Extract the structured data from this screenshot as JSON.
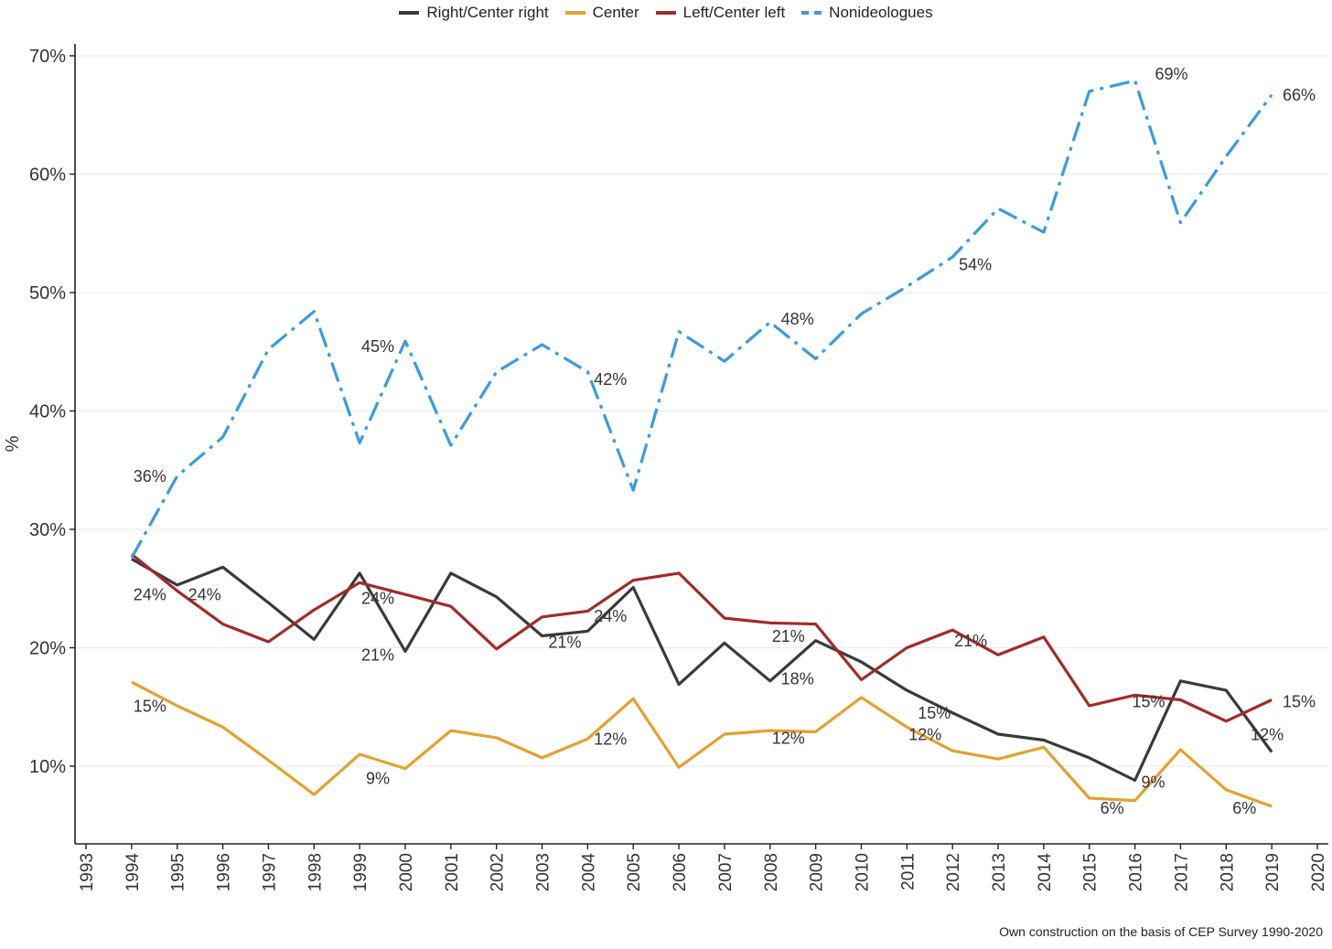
{
  "chart_data": {
    "type": "line",
    "title": "",
    "xlabel": "",
    "ylabel": "%",
    "xlim": [
      1993,
      2020
    ],
    "ylim": [
      3,
      72
    ],
    "x_ticks": [
      "1993",
      "1994",
      "1995",
      "1996",
      "1997",
      "1998",
      "1999",
      "2000",
      "2001",
      "2002",
      "2003",
      "2004",
      "2005",
      "2006",
      "2007",
      "2008",
      "2009",
      "2010",
      "2011",
      "2012",
      "2013",
      "2014",
      "2015",
      "2016",
      "2017",
      "2018",
      "2019",
      "2020"
    ],
    "y_ticks": [
      10,
      20,
      30,
      40,
      50,
      60,
      70
    ],
    "y_tick_labels": [
      "10%",
      "20%",
      "30%",
      "40%",
      "50%",
      "60%",
      "70%"
    ],
    "grid": "horizontal",
    "legend_position": "top",
    "x": [
      1994,
      1995,
      1996,
      1997,
      1998,
      1999,
      2000,
      2001,
      2002,
      2003,
      2004,
      2005,
      2006,
      2007,
      2008,
      2009,
      2010,
      2011,
      2012,
      2013,
      2014,
      2015,
      2016,
      2017,
      2018,
      2019
    ],
    "series": [
      {
        "name": "Right/Center right",
        "color": "#3a3a3a",
        "dash": "solid",
        "values": [
          27.5,
          25.3,
          26.8,
          23.8,
          20.7,
          26.3,
          19.7,
          26.3,
          24.3,
          21.0,
          21.4,
          25.1,
          16.9,
          20.4,
          17.2,
          20.6,
          18.8,
          16.4,
          14.5,
          12.7,
          12.2,
          10.7,
          8.8,
          17.2,
          16.4,
          11.2
        ]
      },
      {
        "name": "Center",
        "color": "#e3a12f",
        "dash": "solid",
        "values": [
          17.1,
          15.1,
          13.3,
          10.5,
          7.6,
          11.0,
          9.8,
          13.0,
          12.4,
          10.7,
          12.3,
          15.7,
          9.9,
          12.7,
          13.0,
          12.9,
          15.8,
          13.3,
          11.3,
          10.6,
          11.6,
          7.3,
          7.1,
          11.4,
          8.0,
          6.6
        ]
      },
      {
        "name": "Left/Center left",
        "color": "#a32a2a",
        "dash": "solid",
        "values": [
          27.9,
          24.8,
          22.0,
          20.5,
          23.2,
          25.5,
          24.5,
          23.5,
          19.9,
          22.6,
          23.1,
          25.7,
          26.3,
          22.5,
          22.1,
          22.0,
          17.3,
          20.0,
          21.5,
          19.4,
          20.9,
          15.1,
          16.0,
          15.6,
          13.8,
          15.6
        ]
      },
      {
        "name": "Nonideologues",
        "color": "#3b9be0",
        "dash": "dashdot",
        "values": [
          27.6,
          34.5,
          37.8,
          45.2,
          48.4,
          37.3,
          45.9,
          37.1,
          43.3,
          45.6,
          43.3,
          33.3,
          46.7,
          44.2,
          47.5,
          44.4,
          48.2,
          50.5,
          53.0,
          57.1,
          55.1,
          67.0,
          67.9,
          55.9,
          61.5,
          66.7
        ]
      }
    ],
    "annotations": [
      {
        "text": "36%",
        "x": 1994.4,
        "y": 34.0
      },
      {
        "text": "45%",
        "x": 1999.4,
        "y": 45.0
      },
      {
        "text": "42%",
        "x": 2004.5,
        "y": 42.2
      },
      {
        "text": "48%",
        "x": 2008.6,
        "y": 47.3
      },
      {
        "text": "54%",
        "x": 2012.5,
        "y": 51.9
      },
      {
        "text": "69%",
        "x": 2016.8,
        "y": 68.0
      },
      {
        "text": "66%",
        "x": 2019.6,
        "y": 66.2
      },
      {
        "text": "24%",
        "x": 1994.4,
        "y": 24.0
      },
      {
        "text": "24%",
        "x": 1995.6,
        "y": 24.0
      },
      {
        "text": "24%",
        "x": 1999.4,
        "y": 23.7
      },
      {
        "text": "21%",
        "x": 1999.4,
        "y": 18.9
      },
      {
        "text": "21%",
        "x": 2003.5,
        "y": 20.0
      },
      {
        "text": "24%",
        "x": 2004.5,
        "y": 22.2
      },
      {
        "text": "21%",
        "x": 2008.4,
        "y": 20.5
      },
      {
        "text": "18%",
        "x": 2008.6,
        "y": 16.9
      },
      {
        "text": "21%",
        "x": 2012.4,
        "y": 20.1
      },
      {
        "text": "15%",
        "x": 2011.6,
        "y": 14.0
      },
      {
        "text": "12%",
        "x": 2011.4,
        "y": 12.2
      },
      {
        "text": "15%",
        "x": 2016.3,
        "y": 15.0
      },
      {
        "text": "9%",
        "x": 2016.4,
        "y": 8.2
      },
      {
        "text": "12%",
        "x": 2018.9,
        "y": 12.2
      },
      {
        "text": "15%",
        "x": 2019.6,
        "y": 15.0
      },
      {
        "text": "6%",
        "x": 2015.5,
        "y": 6.0
      },
      {
        "text": "6%",
        "x": 2018.4,
        "y": 6.0
      },
      {
        "text": "15%",
        "x": 1994.4,
        "y": 14.6
      },
      {
        "text": "9%",
        "x": 1999.4,
        "y": 8.5
      },
      {
        "text": "12%",
        "x": 2004.5,
        "y": 11.8
      },
      {
        "text": "12%",
        "x": 2008.4,
        "y": 11.9
      }
    ]
  },
  "caption": "Own construction on the basis of CEP Survey 1990-2020"
}
